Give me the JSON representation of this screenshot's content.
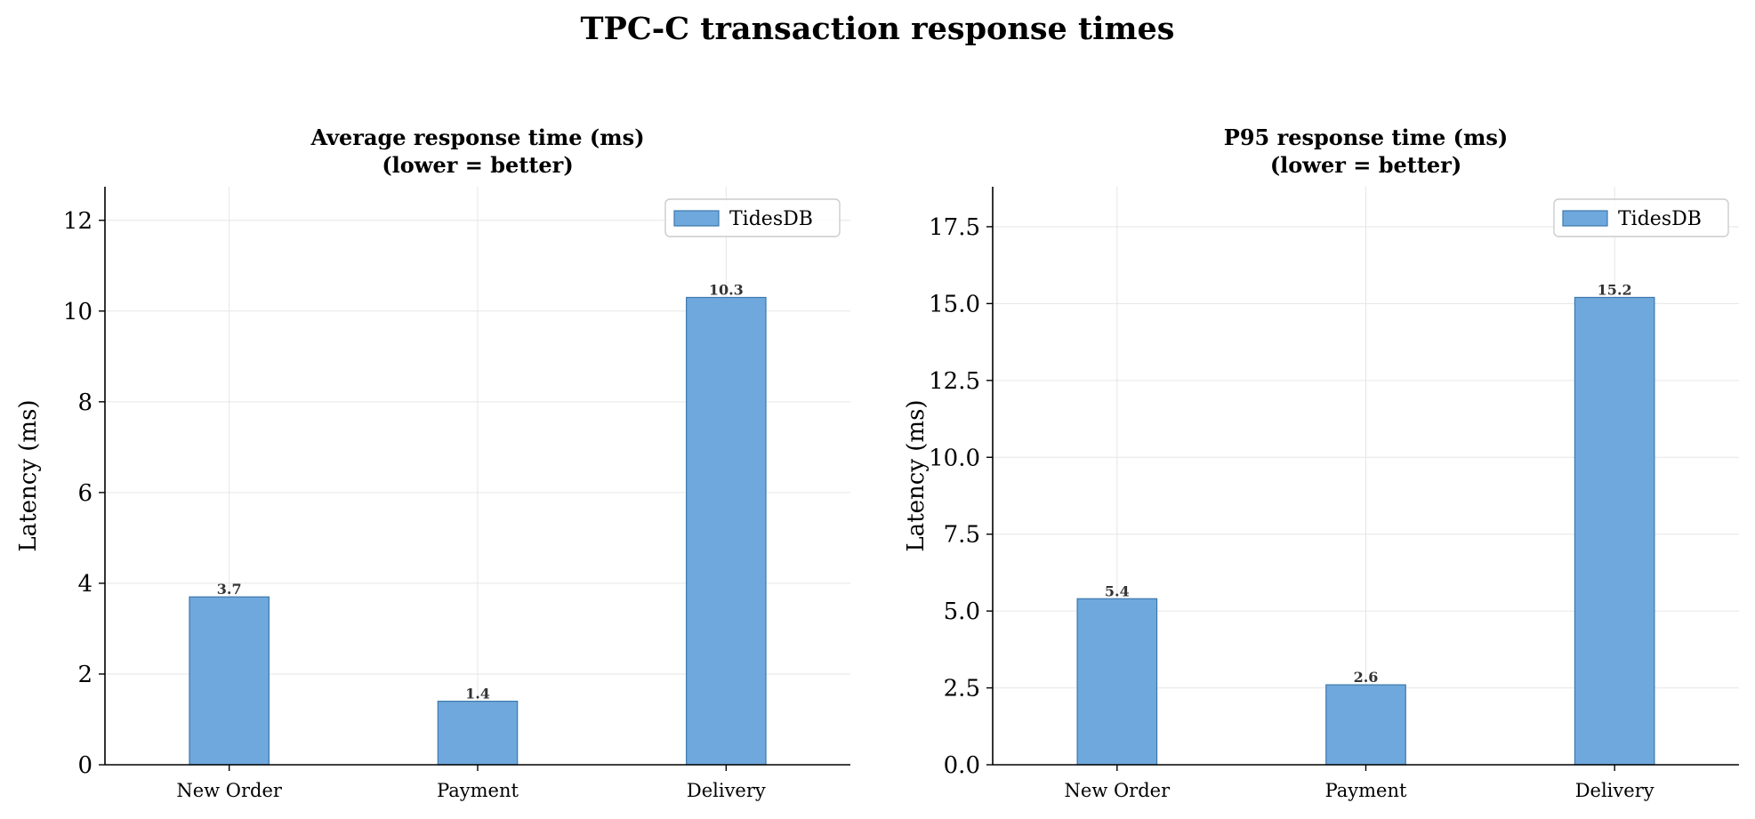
{
  "figure_title": "TPC-C transaction response times",
  "colors": {
    "bar_fill": "#6fa8dc",
    "bar_edge": "#3d78ad",
    "grid": "#e6e6e6",
    "axis": "#000000",
    "value_label": "#333333"
  },
  "chart_data": [
    {
      "type": "bar",
      "title": "Average response time (ms)",
      "subtitle": "(lower = better)",
      "xlabel": "",
      "ylabel": "Latency (ms)",
      "categories": [
        "New Order",
        "Payment",
        "Delivery"
      ],
      "series": [
        {
          "name": "TidesDB",
          "values": [
            3.7,
            1.4,
            10.3
          ]
        }
      ],
      "value_labels": [
        "3.7",
        "1.4",
        "10.3"
      ],
      "ylim": [
        0,
        12.74
      ],
      "yticks": [
        0,
        2,
        4,
        6,
        8,
        10,
        12
      ],
      "ytick_labels": [
        "0",
        "2",
        "4",
        "6",
        "8",
        "10",
        "12"
      ],
      "grid": true,
      "legend_position": "top-right"
    },
    {
      "type": "bar",
      "title": "P95 response time (ms)",
      "subtitle": "(lower = better)",
      "xlabel": "",
      "ylabel": "Latency (ms)",
      "categories": [
        "New Order",
        "Payment",
        "Delivery"
      ],
      "series": [
        {
          "name": "TidesDB",
          "values": [
            5.4,
            2.6,
            15.2
          ]
        }
      ],
      "value_labels": [
        "5.4",
        "2.6",
        "15.2"
      ],
      "ylim": [
        0,
        18.8
      ],
      "yticks": [
        0,
        2.5,
        5,
        7.5,
        10,
        12.5,
        15,
        17.5
      ],
      "ytick_labels": [
        "0.0",
        "2.5",
        "5.0",
        "7.5",
        "10.0",
        "12.5",
        "15.0",
        "17.5"
      ],
      "grid": true,
      "legend_position": "top-right"
    }
  ]
}
